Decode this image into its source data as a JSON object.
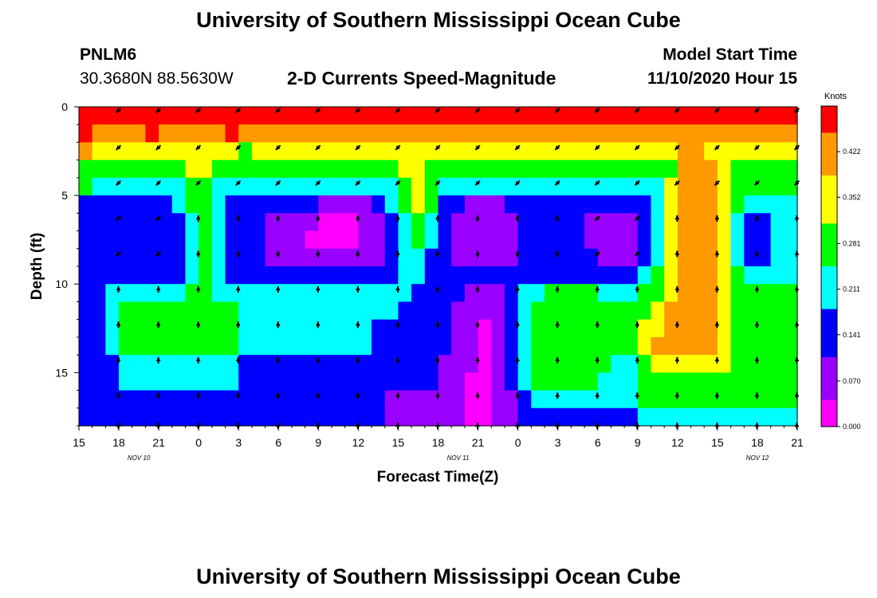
{
  "header": {
    "title": "University of Southern Mississippi Ocean Cube",
    "station_id": "PNLM6",
    "coordinates": "30.3680N 88.5630W",
    "subtitle": "2-D Currents Speed-Magnitude",
    "model_start_label": "Model Start Time",
    "model_start_value": "11/10/2020 Hour 15"
  },
  "footer": {
    "title": "University of Southern Mississippi Ocean Cube"
  },
  "colors": {
    "scale": [
      "#ff00ff",
      "#9900ff",
      "#0000ff",
      "#00ffff",
      "#00ff00",
      "#ffff00",
      "#ff9900",
      "#ff0000"
    ]
  },
  "chart_data": {
    "type": "heatmap",
    "xlabel": "Forecast Time(Z)",
    "ylabel": "Depth (ft)",
    "x_ticks": [
      "15",
      "18",
      "21",
      "0",
      "3",
      "6",
      "9",
      "12",
      "15",
      "18",
      "21",
      "0",
      "3",
      "6",
      "9",
      "12",
      "15",
      "18",
      "21"
    ],
    "date_labels": [
      {
        "text": "NOV 10",
        "hour": 4.5
      },
      {
        "text": "NOV 11",
        "hour": 28.5
      },
      {
        "text": "NOV 12",
        "hour": 51
      }
    ],
    "xlim": [
      0,
      54
    ],
    "y_ticks": [
      0,
      5,
      10,
      15
    ],
    "ylim": [
      0,
      18
    ],
    "colorbar": {
      "label": "Knots",
      "ticks": [
        "0.422",
        "0.352",
        "0.281",
        "0.211",
        "0.141",
        "0.070",
        "0.000"
      ],
      "range": [
        0,
        0.492
      ]
    },
    "time_columns": 54,
    "depth_rows": [
      0.5,
      1.5,
      2.5,
      3.5,
      4.5,
      5.5,
      6.5,
      7.5,
      8.5,
      9.5,
      10.5,
      11.5,
      12.5,
      13.5,
      14.5,
      15.5,
      16.5,
      17.5
    ],
    "speed_levels": [
      [
        7,
        7,
        7,
        7,
        7,
        7,
        7,
        7,
        7,
        7,
        7,
        7,
        7,
        7,
        7,
        7,
        7,
        7,
        7,
        7,
        7,
        7,
        7,
        7,
        7,
        7,
        7,
        7,
        7,
        7,
        7,
        7,
        7,
        7,
        7,
        7,
        7,
        7,
        7,
        7,
        7,
        7,
        7,
        7,
        7,
        7,
        7,
        7,
        7,
        7,
        7,
        7,
        7,
        7
      ],
      [
        7,
        6,
        6,
        6,
        6,
        7,
        6,
        6,
        6,
        6,
        6,
        7,
        6,
        6,
        6,
        6,
        6,
        6,
        6,
        6,
        6,
        6,
        6,
        6,
        6,
        6,
        6,
        6,
        6,
        6,
        6,
        6,
        6,
        6,
        6,
        6,
        6,
        6,
        6,
        6,
        6,
        6,
        6,
        6,
        6,
        6,
        6,
        6,
        6,
        6,
        6,
        6,
        6,
        6
      ],
      [
        6,
        5,
        5,
        5,
        5,
        5,
        5,
        5,
        5,
        5,
        5,
        5,
        4,
        5,
        5,
        5,
        5,
        5,
        5,
        5,
        5,
        5,
        5,
        5,
        5,
        5,
        5,
        5,
        5,
        5,
        5,
        5,
        5,
        5,
        5,
        5,
        5,
        5,
        5,
        5,
        5,
        5,
        5,
        5,
        5,
        6,
        6,
        5,
        5,
        5,
        5,
        5,
        5,
        5
      ],
      [
        4,
        4,
        4,
        4,
        4,
        4,
        4,
        4,
        5,
        5,
        4,
        4,
        4,
        4,
        4,
        4,
        4,
        4,
        4,
        4,
        4,
        4,
        4,
        4,
        5,
        5,
        4,
        4,
        4,
        4,
        4,
        4,
        4,
        4,
        4,
        4,
        4,
        4,
        4,
        4,
        4,
        4,
        4,
        4,
        4,
        6,
        6,
        6,
        5,
        4,
        4,
        4,
        4,
        4
      ],
      [
        4,
        3,
        3,
        3,
        3,
        3,
        3,
        3,
        4,
        4,
        3,
        3,
        3,
        3,
        3,
        3,
        3,
        3,
        3,
        3,
        3,
        3,
        3,
        3,
        4,
        5,
        4,
        3,
        3,
        3,
        3,
        3,
        3,
        3,
        3,
        3,
        3,
        3,
        3,
        3,
        3,
        3,
        3,
        3,
        5,
        6,
        6,
        6,
        5,
        4,
        4,
        4,
        4,
        4
      ],
      [
        2,
        2,
        2,
        2,
        2,
        2,
        2,
        3,
        4,
        4,
        3,
        2,
        2,
        2,
        2,
        2,
        2,
        2,
        1,
        1,
        1,
        1,
        2,
        3,
        4,
        5,
        4,
        2,
        2,
        1,
        1,
        1,
        2,
        2,
        2,
        2,
        2,
        2,
        2,
        2,
        2,
        2,
        2,
        3,
        5,
        6,
        6,
        6,
        5,
        4,
        3,
        3,
        3,
        3
      ],
      [
        2,
        2,
        2,
        2,
        2,
        2,
        2,
        2,
        3,
        4,
        3,
        2,
        2,
        2,
        1,
        1,
        1,
        1,
        0,
        0,
        0,
        1,
        1,
        2,
        3,
        4,
        3,
        2,
        1,
        1,
        1,
        1,
        1,
        2,
        2,
        2,
        2,
        2,
        1,
        1,
        1,
        1,
        2,
        3,
        5,
        6,
        6,
        6,
        5,
        3,
        2,
        2,
        3,
        3
      ],
      [
        2,
        2,
        2,
        2,
        2,
        2,
        2,
        2,
        3,
        4,
        3,
        2,
        2,
        2,
        1,
        1,
        1,
        0,
        0,
        0,
        0,
        1,
        1,
        2,
        3,
        4,
        3,
        2,
        1,
        1,
        1,
        1,
        1,
        2,
        2,
        2,
        2,
        2,
        1,
        1,
        1,
        1,
        2,
        3,
        5,
        6,
        6,
        6,
        5,
        3,
        2,
        2,
        3,
        3
      ],
      [
        2,
        2,
        2,
        2,
        2,
        2,
        2,
        2,
        3,
        4,
        3,
        2,
        2,
        2,
        1,
        1,
        1,
        1,
        1,
        1,
        1,
        1,
        1,
        2,
        3,
        3,
        2,
        2,
        1,
        1,
        1,
        1,
        1,
        2,
        2,
        2,
        2,
        2,
        2,
        1,
        1,
        1,
        2,
        3,
        5,
        6,
        6,
        6,
        5,
        3,
        2,
        2,
        3,
        3
      ],
      [
        2,
        2,
        2,
        2,
        2,
        2,
        2,
        2,
        3,
        4,
        3,
        2,
        2,
        2,
        2,
        2,
        2,
        2,
        2,
        2,
        2,
        2,
        2,
        2,
        3,
        3,
        2,
        2,
        2,
        2,
        2,
        2,
        2,
        2,
        2,
        2,
        2,
        2,
        2,
        2,
        2,
        2,
        3,
        4,
        5,
        6,
        6,
        6,
        5,
        4,
        3,
        3,
        3,
        3
      ],
      [
        2,
        2,
        3,
        3,
        3,
        3,
        3,
        3,
        4,
        4,
        3,
        3,
        3,
        3,
        3,
        3,
        3,
        3,
        3,
        3,
        3,
        3,
        3,
        3,
        3,
        2,
        2,
        2,
        2,
        1,
        1,
        1,
        2,
        3,
        3,
        4,
        4,
        4,
        4,
        3,
        3,
        3,
        4,
        4,
        5,
        6,
        6,
        6,
        5,
        4,
        4,
        4,
        4,
        4
      ],
      [
        2,
        2,
        3,
        4,
        4,
        4,
        4,
        4,
        4,
        4,
        4,
        4,
        3,
        3,
        3,
        3,
        3,
        3,
        3,
        3,
        3,
        3,
        3,
        3,
        2,
        2,
        2,
        2,
        1,
        1,
        1,
        1,
        2,
        3,
        4,
        4,
        4,
        4,
        4,
        4,
        4,
        4,
        4,
        5,
        6,
        6,
        6,
        6,
        5,
        4,
        4,
        4,
        4,
        4
      ],
      [
        2,
        2,
        3,
        4,
        4,
        4,
        4,
        4,
        4,
        4,
        4,
        4,
        3,
        3,
        3,
        3,
        3,
        3,
        3,
        3,
        3,
        3,
        2,
        2,
        2,
        2,
        2,
        2,
        1,
        1,
        0,
        1,
        2,
        3,
        4,
        4,
        4,
        4,
        4,
        4,
        4,
        4,
        5,
        5,
        6,
        6,
        6,
        6,
        5,
        4,
        4,
        4,
        4,
        4
      ],
      [
        2,
        2,
        3,
        4,
        4,
        4,
        4,
        4,
        4,
        4,
        4,
        4,
        3,
        3,
        3,
        3,
        3,
        3,
        3,
        3,
        3,
        3,
        2,
        2,
        2,
        2,
        2,
        2,
        1,
        1,
        0,
        1,
        2,
        3,
        4,
        4,
        4,
        4,
        4,
        4,
        4,
        4,
        5,
        6,
        6,
        6,
        6,
        6,
        5,
        4,
        4,
        4,
        4,
        4
      ],
      [
        2,
        2,
        2,
        3,
        3,
        3,
        3,
        3,
        3,
        3,
        3,
        3,
        2,
        2,
        2,
        2,
        2,
        2,
        2,
        2,
        2,
        2,
        2,
        2,
        2,
        2,
        2,
        1,
        1,
        1,
        0,
        1,
        2,
        3,
        4,
        4,
        4,
        4,
        4,
        4,
        3,
        3,
        4,
        5,
        5,
        5,
        5,
        5,
        5,
        4,
        4,
        4,
        4,
        4
      ],
      [
        2,
        2,
        2,
        3,
        3,
        3,
        3,
        3,
        3,
        3,
        3,
        3,
        2,
        2,
        2,
        2,
        2,
        2,
        2,
        2,
        2,
        2,
        2,
        2,
        2,
        2,
        2,
        1,
        1,
        0,
        0,
        1,
        2,
        3,
        4,
        4,
        4,
        4,
        4,
        3,
        3,
        3,
        4,
        4,
        4,
        4,
        4,
        4,
        4,
        4,
        4,
        4,
        4,
        4
      ],
      [
        2,
        2,
        2,
        2,
        2,
        2,
        2,
        2,
        2,
        2,
        2,
        2,
        2,
        2,
        2,
        2,
        2,
        2,
        2,
        2,
        2,
        2,
        2,
        1,
        1,
        1,
        1,
        1,
        1,
        0,
        0,
        1,
        1,
        2,
        3,
        3,
        3,
        3,
        3,
        3,
        3,
        3,
        4,
        4,
        4,
        4,
        4,
        4,
        4,
        4,
        4,
        4,
        4,
        4
      ],
      [
        2,
        2,
        2,
        2,
        2,
        2,
        2,
        2,
        2,
        2,
        2,
        2,
        2,
        2,
        2,
        2,
        2,
        2,
        2,
        2,
        2,
        2,
        2,
        1,
        1,
        1,
        1,
        1,
        1,
        0,
        0,
        1,
        1,
        2,
        2,
        2,
        2,
        2,
        2,
        2,
        2,
        2,
        3,
        3,
        3,
        3,
        3,
        3,
        3,
        3,
        3,
        3,
        3,
        3
      ]
    ],
    "arrow_hours": [
      3,
      6,
      9,
      12,
      15,
      18,
      21,
      24,
      27,
      30,
      33,
      36,
      39,
      42,
      45,
      48,
      51,
      54
    ],
    "arrow_depths": [
      0.2,
      2.3,
      4.3,
      6.3,
      8.3,
      10.3,
      12.3,
      14.3,
      16.3,
      18.0
    ],
    "arrow_pattern": {
      "surface": "southwest",
      "upper": "southwest",
      "lower": "north"
    }
  }
}
